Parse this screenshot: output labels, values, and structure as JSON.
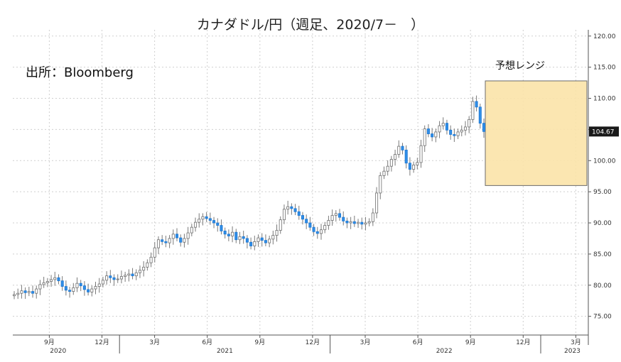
{
  "chart_data": {
    "type": "candlestick",
    "title": "カナダドル/円（週足、2020/7－　）",
    "source": "出所：Bloomberg",
    "forecast_label": "予想レンジ",
    "forecast_range": {
      "low": 96.0,
      "high": 112.8
    },
    "last_price": "104.67",
    "ylim": [
      72,
      121
    ],
    "y_ticks": [
      "75.00",
      "80.00",
      "85.00",
      "90.00",
      "95.00",
      "100.00",
      "105.00",
      "110.00",
      "115.00",
      "120.00"
    ],
    "x_ticks": [
      {
        "label": "9月",
        "month": 2
      },
      {
        "label": "12月",
        "month": 5
      },
      {
        "label": "3月",
        "month": 8
      },
      {
        "label": "6月",
        "month": 11
      },
      {
        "label": "9月",
        "month": 14
      },
      {
        "label": "12月",
        "month": 17
      },
      {
        "label": "3月",
        "month": 20
      },
      {
        "label": "6月",
        "month": 23
      },
      {
        "label": "9月",
        "month": 26
      },
      {
        "label": "12月",
        "month": 29
      },
      {
        "label": "3月",
        "month": 32
      }
    ],
    "years": [
      {
        "label": "2020",
        "month": 2.5
      },
      {
        "label": "2021",
        "month": 12
      },
      {
        "label": "2022",
        "month": 24.5
      },
      {
        "label": "2023",
        "month": 31.8
      }
    ],
    "closes": [
      78.5,
      78.7,
      79.1,
      78.8,
      79.0,
      78.7,
      79.4,
      80.1,
      80.4,
      80.6,
      80.9,
      81.2,
      80.7,
      79.8,
      79.2,
      79.0,
      79.6,
      80.3,
      79.9,
      79.3,
      78.9,
      79.4,
      79.8,
      80.2,
      80.8,
      81.5,
      81.2,
      80.9,
      81.0,
      81.4,
      81.6,
      81.8,
      81.5,
      82.0,
      82.4,
      82.9,
      83.6,
      84.5,
      86.0,
      87.3,
      87.0,
      86.8,
      87.5,
      88.2,
      87.6,
      86.9,
      87.5,
      88.4,
      89.3,
      90.1,
      90.6,
      91.0,
      90.7,
      90.4,
      90.0,
      89.6,
      88.7,
      88.2,
      87.9,
      88.5,
      87.3,
      87.8,
      87.5,
      86.9,
      86.3,
      87.0,
      87.6,
      87.2,
      86.8,
      87.4,
      88.0,
      88.8,
      90.5,
      92.2,
      92.6,
      92.3,
      91.8,
      91.2,
      90.6,
      90.0,
      89.3,
      88.6,
      88.3,
      88.9,
      89.6,
      90.4,
      91.2,
      91.5,
      90.9,
      90.3,
      90.0,
      90.2,
      89.9,
      90.1,
      89.8,
      90.0,
      90.2,
      91.6,
      94.8,
      97.6,
      98.3,
      99.1,
      100.2,
      101.0,
      102.3,
      101.7,
      99.6,
      98.6,
      99.3,
      99.7,
      102.4,
      105.1,
      104.3,
      103.8,
      104.6,
      105.6,
      106.0,
      104.9,
      104.2,
      104.0,
      104.6,
      104.9,
      105.4,
      106.6,
      109.5,
      108.6,
      106.0,
      104.67
    ],
    "ranges": [
      1.0,
      1.2
    ]
  }
}
